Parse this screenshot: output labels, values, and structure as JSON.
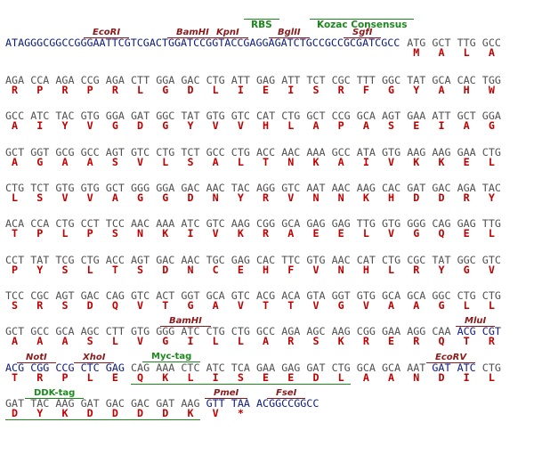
{
  "header": {
    "labels": [
      "RBS",
      "Kozac Consensus"
    ]
  },
  "rows": [
    {
      "features": [
        "EcoRI",
        "BamHI",
        "KpnI",
        "BglII",
        "SgfI"
      ],
      "prefix": "ATAGGGCGGCCGGGAATTCGTCGACTGGATCCGGTACCGAGGAGATCTGCCGCCGCGATCGCC",
      "codons": [
        "ATG",
        "GCT",
        "TTG",
        "GCC"
      ],
      "amino_acids": [
        "M",
        "A",
        "L",
        "A"
      ],
      "highlight": []
    },
    {
      "codons": [
        "AGA",
        "CCA",
        "AGA",
        "CCG",
        "AGA",
        "CTT",
        "GGA",
        "GAC",
        "CTG",
        "ATT",
        "GAG",
        "ATT",
        "TCT",
        "CGC",
        "TTT",
        "GGC",
        "TAT",
        "GCA",
        "CAC",
        "TGG"
      ],
      "amino_acids": [
        "R",
        "P",
        "R",
        "P",
        "R",
        "L",
        "G",
        "D",
        "L",
        "I",
        "E",
        "I",
        "S",
        "R",
        "F",
        "G",
        "Y",
        "A",
        "H",
        "W"
      ],
      "highlight": []
    },
    {
      "codons": [
        "GCC",
        "ATC",
        "TAC",
        "GTG",
        "GGA",
        "GAT",
        "GGC",
        "TAT",
        "GTG",
        "GTC",
        "CAT",
        "CTG",
        "GCT",
        "CCG",
        "GCA",
        "AGT",
        "GAA",
        "ATT",
        "GCT",
        "GGA"
      ],
      "amino_acids": [
        "A",
        "I",
        "Y",
        "V",
        "G",
        "D",
        "G",
        "Y",
        "V",
        "V",
        "H",
        "L",
        "A",
        "P",
        "A",
        "S",
        "E",
        "I",
        "A",
        "G"
      ],
      "highlight": []
    },
    {
      "codons": [
        "GCT",
        "GGT",
        "GCG",
        "GCC",
        "AGT",
        "GTC",
        "CTG",
        "TCT",
        "GCC",
        "CTG",
        "ACC",
        "AAC",
        "AAA",
        "GCC",
        "ATA",
        "GTG",
        "AAG",
        "AAG",
        "GAA",
        "CTG"
      ],
      "amino_acids": [
        "A",
        "G",
        "A",
        "A",
        "S",
        "V",
        "L",
        "S",
        "A",
        "L",
        "T",
        "N",
        "K",
        "A",
        "I",
        "V",
        "K",
        "K",
        "E",
        "L"
      ],
      "highlight": []
    },
    {
      "codons": [
        "CTG",
        "TCT",
        "GTG",
        "GTG",
        "GCT",
        "GGG",
        "GGA",
        "GAC",
        "AAC",
        "TAC",
        "AGG",
        "GTC",
        "AAT",
        "AAC",
        "AAG",
        "CAC",
        "GAT",
        "GAC",
        "AGA",
        "TAC"
      ],
      "amino_acids": [
        "L",
        "S",
        "V",
        "V",
        "A",
        "G",
        "G",
        "D",
        "N",
        "Y",
        "R",
        "V",
        "N",
        "N",
        "K",
        "H",
        "D",
        "D",
        "R",
        "Y"
      ],
      "highlight": []
    },
    {
      "codons": [
        "ACA",
        "CCA",
        "CTG",
        "CCT",
        "TCC",
        "AAC",
        "AAA",
        "ATC",
        "GTC",
        "AAG",
        "CGG",
        "GCA",
        "GAG",
        "GAG",
        "TTG",
        "GTG",
        "GGG",
        "CAG",
        "GAG",
        "TTG"
      ],
      "amino_acids": [
        "T",
        "P",
        "L",
        "P",
        "S",
        "N",
        "K",
        "I",
        "V",
        "K",
        "R",
        "A",
        "E",
        "E",
        "L",
        "V",
        "G",
        "Q",
        "E",
        "L"
      ],
      "highlight": []
    },
    {
      "codons": [
        "CCT",
        "TAT",
        "TCG",
        "CTG",
        "ACC",
        "AGT",
        "GAC",
        "AAC",
        "TGC",
        "GAG",
        "CAC",
        "TTC",
        "GTG",
        "AAC",
        "CAT",
        "CTG",
        "CGC",
        "TAT",
        "GGC",
        "GTC"
      ],
      "amino_acids": [
        "P",
        "Y",
        "S",
        "L",
        "T",
        "S",
        "D",
        "N",
        "C",
        "E",
        "H",
        "F",
        "V",
        "N",
        "H",
        "L",
        "R",
        "Y",
        "G",
        "V"
      ],
      "highlight": []
    },
    {
      "codons": [
        "TCC",
        "CGC",
        "AGT",
        "GAC",
        "CAG",
        "GTC",
        "ACT",
        "GGT",
        "GCA",
        "GTC",
        "ACG",
        "ACA",
        "GTA",
        "GGT",
        "GTG",
        "GCA",
        "GCA",
        "GGC",
        "CTG",
        "CTG"
      ],
      "amino_acids": [
        "S",
        "R",
        "S",
        "D",
        "Q",
        "V",
        "T",
        "G",
        "A",
        "V",
        "T",
        "T",
        "V",
        "G",
        "V",
        "A",
        "A",
        "G",
        "L",
        "L"
      ],
      "highlight": []
    },
    {
      "features": [
        "BamHI",
        "MluI"
      ],
      "codons": [
        "GCT",
        "GCC",
        "GCA",
        "AGC",
        "CTT",
        "GTG",
        "GGG",
        "ATC",
        "CTG",
        "CTG",
        "GCC",
        "AGA",
        "AGC",
        "AAG",
        "CGG",
        "GAA",
        "AGG",
        "CAA",
        "ACG",
        "CGT"
      ],
      "amino_acids": [
        "A",
        "A",
        "A",
        "S",
        "L",
        "V",
        "G",
        "I",
        "L",
        "L",
        "A",
        "R",
        "S",
        "K",
        "R",
        "E",
        "R",
        "Q",
        "T",
        "R"
      ],
      "highlight": [
        18,
        19
      ]
    },
    {
      "features": [
        "NotI",
        "XhoI",
        "Myc-tag",
        "EcoRV"
      ],
      "codons": [
        "ACG",
        "CGG",
        "CCG",
        "CTC",
        "GAG",
        "CAG",
        "AAA",
        "CTC",
        "ATC",
        "TCA",
        "GAA",
        "GAG",
        "GAT",
        "CTG",
        "GCA",
        "GCA",
        "AAT",
        "GAT",
        "ATC",
        "CTG"
      ],
      "amino_acids": [
        "T",
        "R",
        "P",
        "L",
        "E",
        "Q",
        "K",
        "L",
        "I",
        "S",
        "E",
        "E",
        "D",
        "L",
        "A",
        "A",
        "N",
        "D",
        "I",
        "L"
      ],
      "highlight": [
        0,
        1,
        2,
        3,
        4,
        17,
        18
      ]
    },
    {
      "features": [
        "DDK-tag",
        "PmeI",
        "FseI"
      ],
      "codons": [
        "GAT",
        "TAC",
        "AAG",
        "GAT",
        "GAC",
        "GAC",
        "GAT",
        "AAG",
        "GTT",
        "TAA"
      ],
      "amino_acids": [
        "D",
        "Y",
        "K",
        "D",
        "D",
        "D",
        "D",
        "K",
        "V",
        "*"
      ],
      "highlight": [
        8,
        9
      ],
      "suffix": "ACGGCCGGCC"
    }
  ]
}
